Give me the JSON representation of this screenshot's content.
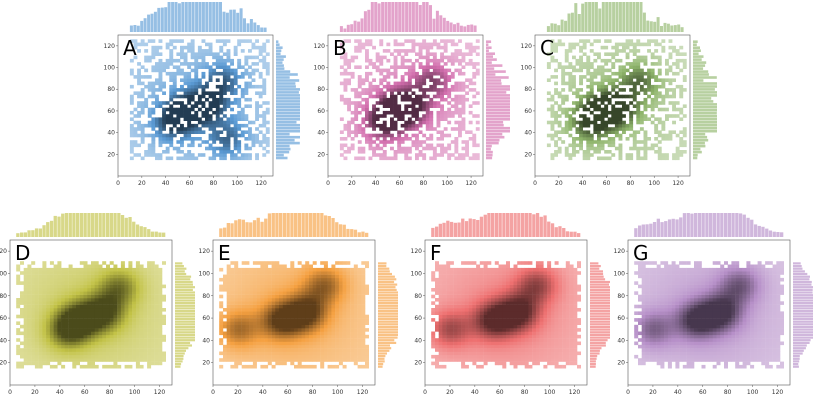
{
  "figure": {
    "description_type": "grid of joint hexbin / histogram panels",
    "panel_count": 7
  },
  "chart_data": [
    {
      "type": "heatmap",
      "label": "A",
      "color": "#5b9bd5",
      "xlim": [
        0,
        130
      ],
      "ylim": [
        0,
        130
      ],
      "xticks": [
        "0",
        "20",
        "40",
        "60",
        "80",
        "100",
        "120"
      ],
      "yticks": [
        "20",
        "40",
        "60",
        "80",
        "100",
        "120"
      ],
      "x_range_of_data": [
        10,
        125
      ],
      "y_range_of_data": [
        15,
        125
      ],
      "density_peaks": [
        {
          "x": 55,
          "y": 60
        },
        {
          "x": 75,
          "y": 65
        },
        {
          "x": 88,
          "y": 88
        },
        {
          "x": 45,
          "y": 48
        },
        {
          "x": 92,
          "y": 34
        }
      ]
    },
    {
      "type": "heatmap",
      "label": "B",
      "color": "#d36fae",
      "xlim": [
        0,
        130
      ],
      "ylim": [
        0,
        130
      ],
      "xticks": [
        "0",
        "20",
        "40",
        "60",
        "80",
        "100",
        "120"
      ],
      "yticks": [
        "20",
        "40",
        "60",
        "80",
        "100",
        "120"
      ],
      "x_range_of_data": [
        10,
        125
      ],
      "y_range_of_data": [
        15,
        125
      ],
      "density_peaks": [
        {
          "x": 55,
          "y": 60
        },
        {
          "x": 68,
          "y": 64
        },
        {
          "x": 88,
          "y": 88
        },
        {
          "x": 45,
          "y": 48
        }
      ]
    },
    {
      "type": "heatmap",
      "label": "C",
      "color": "#8fb56b",
      "xlim": [
        0,
        130
      ],
      "ylim": [
        0,
        130
      ],
      "xticks": [
        "0",
        "20",
        "40",
        "60",
        "80",
        "100",
        "120"
      ],
      "yticks": [
        "20",
        "40",
        "60",
        "80",
        "100",
        "120"
      ],
      "x_range_of_data": [
        10,
        125
      ],
      "y_range_of_data": [
        15,
        125
      ],
      "density_peaks": [
        {
          "x": 55,
          "y": 60
        },
        {
          "x": 70,
          "y": 63
        },
        {
          "x": 88,
          "y": 88
        },
        {
          "x": 45,
          "y": 48
        }
      ]
    },
    {
      "type": "heatmap",
      "label": "D",
      "color": "#c2c246",
      "xlim": [
        0,
        130
      ],
      "ylim": [
        0,
        130
      ],
      "xticks": [
        "0",
        "20",
        "40",
        "60",
        "80",
        "100",
        "120"
      ],
      "yticks": [
        "20",
        "40",
        "60",
        "80",
        "100",
        "120"
      ],
      "x_range_of_data": [
        5,
        125
      ],
      "y_range_of_data": [
        15,
        110
      ],
      "density_peaks": [
        {
          "x": 55,
          "y": 58
        },
        {
          "x": 75,
          "y": 65
        },
        {
          "x": 88,
          "y": 88
        },
        {
          "x": 45,
          "y": 48
        }
      ]
    },
    {
      "type": "heatmap",
      "label": "E",
      "color": "#f5a040",
      "xlim": [
        0,
        130
      ],
      "ylim": [
        0,
        130
      ],
      "xticks": [
        "0",
        "20",
        "40",
        "60",
        "80",
        "100",
        "120"
      ],
      "yticks": [
        "20",
        "40",
        "60",
        "80",
        "100",
        "120"
      ],
      "x_range_of_data": [
        5,
        125
      ],
      "y_range_of_data": [
        15,
        110
      ],
      "density_peaks": [
        {
          "x": 55,
          "y": 58
        },
        {
          "x": 75,
          "y": 65
        },
        {
          "x": 90,
          "y": 90
        },
        {
          "x": 20,
          "y": 50
        }
      ]
    },
    {
      "type": "heatmap",
      "label": "F",
      "color": "#ee6f6f",
      "xlim": [
        0,
        130
      ],
      "ylim": [
        0,
        130
      ],
      "xticks": [
        "0",
        "20",
        "40",
        "60",
        "80",
        "100",
        "120"
      ],
      "yticks": [
        "20",
        "40",
        "60",
        "80",
        "100",
        "120"
      ],
      "x_range_of_data": [
        5,
        125
      ],
      "y_range_of_data": [
        15,
        110
      ],
      "density_peaks": [
        {
          "x": 55,
          "y": 58
        },
        {
          "x": 75,
          "y": 65
        },
        {
          "x": 90,
          "y": 90
        },
        {
          "x": 20,
          "y": 50
        }
      ]
    },
    {
      "type": "heatmap",
      "label": "G",
      "color": "#b68fc8",
      "xlim": [
        0,
        130
      ],
      "ylim": [
        0,
        130
      ],
      "xticks": [
        "0",
        "20",
        "40",
        "60",
        "80",
        "100",
        "120"
      ],
      "yticks": [
        "20",
        "40",
        "60",
        "80",
        "100",
        "120"
      ],
      "x_range_of_data": [
        5,
        125
      ],
      "y_range_of_data": [
        15,
        110
      ],
      "density_peaks": [
        {
          "x": 55,
          "y": 58
        },
        {
          "x": 75,
          "y": 65
        },
        {
          "x": 90,
          "y": 90
        },
        {
          "x": 20,
          "y": 50
        }
      ]
    }
  ]
}
